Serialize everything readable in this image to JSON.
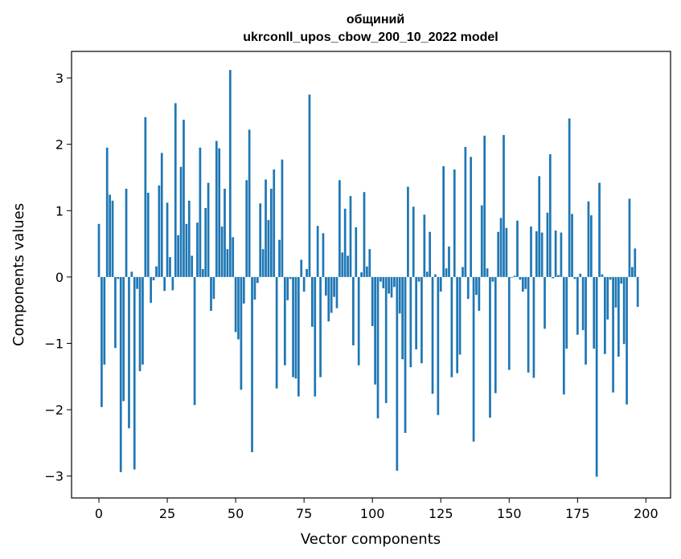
{
  "chart_data": {
    "type": "bar",
    "title_line1": "общиний",
    "title_line2": "ukrconll_upos_cbow_200_10_2022 model",
    "xlabel": "Vector components",
    "ylabel": "Components values",
    "xlim": [
      -10,
      209
    ],
    "ylim": [
      -3.33,
      3.4
    ],
    "xticks": [
      0,
      25,
      50,
      75,
      100,
      125,
      150,
      175,
      200
    ],
    "yticks": [
      -3,
      -2,
      -1,
      0,
      1,
      2,
      3
    ],
    "xtick_labels": [
      "0",
      "25",
      "50",
      "75",
      "100",
      "125",
      "150",
      "175",
      "200"
    ],
    "ytick_labels": [
      "−3",
      "−2",
      "−1",
      "0",
      "1",
      "2",
      "3"
    ],
    "bar_color": "#1f77b4",
    "values": [
      0.8,
      -1.96,
      -1.32,
      1.95,
      1.24,
      1.15,
      -1.07,
      -0.03,
      -2.94,
      -1.87,
      1.33,
      -2.28,
      0.08,
      -2.9,
      -0.18,
      -1.42,
      -1.32,
      2.41,
      1.27,
      -0.39,
      -0.05,
      0.16,
      1.38,
      1.87,
      -0.21,
      1.12,
      0.3,
      -0.2,
      2.62,
      0.63,
      1.66,
      2.37,
      0.8,
      1.15,
      0.32,
      -1.93,
      0.82,
      1.95,
      0.12,
      1.04,
      1.42,
      -0.51,
      -0.33,
      2.05,
      1.94,
      0.76,
      1.33,
      0.42,
      3.12,
      0.6,
      -0.83,
      -0.94,
      -1.7,
      -0.4,
      1.46,
      2.22,
      -2.64,
      -0.34,
      -0.09,
      1.11,
      0.42,
      1.47,
      0.86,
      1.33,
      1.62,
      -1.68,
      0.56,
      1.77,
      -1.33,
      -0.35,
      -0.03,
      -1.51,
      -1.53,
      -1.8,
      0.26,
      -0.22,
      0.12,
      2.75,
      -0.75,
      -1.8,
      0.77,
      -1.51,
      0.66,
      -0.28,
      -0.67,
      -0.54,
      -0.3,
      -0.47,
      1.46,
      0.37,
      1.03,
      0.32,
      1.22,
      -1.03,
      0.75,
      -1.33,
      0.07,
      1.28,
      0.16,
      0.42,
      -0.74,
      -1.62,
      -2.13,
      -0.07,
      -0.17,
      -1.9,
      -0.25,
      -0.31,
      -0.15,
      -2.92,
      -0.55,
      -1.24,
      -2.35,
      1.36,
      -1.36,
      1.06,
      -1.09,
      -0.07,
      -1.3,
      0.94,
      0.08,
      0.68,
      -1.76,
      0.04,
      -2.08,
      -0.22,
      1.67,
      0.13,
      0.46,
      -1.51,
      1.62,
      -1.45,
      -1.17,
      0.15,
      1.96,
      -0.33,
      1.81,
      -2.48,
      -0.27,
      -0.51,
      1.08,
      2.13,
      0.13,
      -2.12,
      -0.07,
      -1.75,
      0.68,
      0.89,
      2.14,
      0.74,
      -1.4,
      -0.01,
      0.02,
      0.85,
      -0.04,
      -0.22,
      -0.18,
      -1.44,
      0.76,
      -1.52,
      0.69,
      1.52,
      0.67,
      -0.78,
      0.97,
      1.85,
      -0.02,
      0.7,
      0.03,
      0.67,
      -1.77,
      -1.08,
      2.39,
      0.95,
      -0.03,
      -0.87,
      0.05,
      -0.8,
      -1.32,
      1.14,
      0.93,
      -1.08,
      -3.01,
      1.42,
      0.04,
      -1.16,
      -0.64,
      -0.04,
      -1.74,
      -0.46,
      -1.2,
      -0.1,
      -1.01,
      -1.92,
      1.18,
      0.15,
      0.43,
      -0.45
    ]
  }
}
